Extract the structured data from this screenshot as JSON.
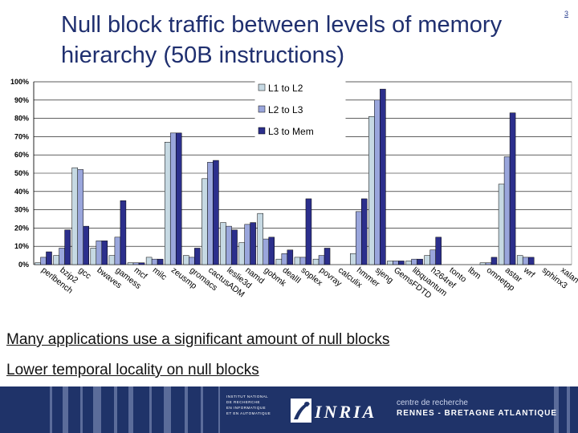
{
  "slide": {
    "title": "Null block traffic between levels of memory hierarchy (50B instructions)",
    "number": "3",
    "bullets": [
      "Many applications use a significant amount of null blocks",
      "Lower temporal locality on null blocks"
    ]
  },
  "footer": {
    "institute_lines": [
      "INSTITUT NATIONAL",
      "DE RECHERCHE",
      "EN INFORMATIQUE",
      "ET EN AUTOMATIQUE"
    ],
    "logo_text": "INRIA",
    "centre_line1": "centre de recherche",
    "centre_line2": "RENNES - BRETAGNE ATLANTIQUE",
    "background_color": "#1f3369"
  },
  "chart_data": {
    "type": "bar",
    "title": "",
    "xlabel": "",
    "ylabel": "",
    "ylim": [
      0,
      100
    ],
    "y_ticks": [
      "0%",
      "10%",
      "20%",
      "30%",
      "40%",
      "50%",
      "60%",
      "70%",
      "80%",
      "90%",
      "100%"
    ],
    "grid": true,
    "legend_position": "top-center",
    "categories": [
      "perlbench",
      "bzip2",
      "gcc",
      "bwaves",
      "gamess",
      "mcf",
      "milc",
      "zeusmp",
      "gromacs",
      "cactusADM",
      "leslie3d",
      "namd",
      "gobmk",
      "dealII",
      "soplex",
      "povray",
      "calculix",
      "hmmer",
      "sjeng",
      "GemsFDTD",
      "libquantum",
      "h264ref",
      "tonto",
      "lbm",
      "omnetpp",
      "astar",
      "wrf",
      "sphinx3",
      "xalan"
    ],
    "series": [
      {
        "name": "L1 to L2",
        "color": "#c6d9e3",
        "values": [
          1,
          5,
          53,
          9,
          5,
          1,
          4,
          67,
          5,
          47,
          23,
          12,
          28,
          3,
          4,
          3,
          0,
          6,
          81,
          2,
          2,
          5,
          0,
          0,
          1,
          44,
          5,
          0,
          0
        ]
      },
      {
        "name": "L2 to L3",
        "color": "#9aa6dc",
        "values": [
          4,
          9,
          52,
          13,
          15,
          1,
          3,
          72,
          4,
          56,
          21,
          22,
          14,
          6,
          4,
          5,
          0,
          29,
          90,
          2,
          3,
          8,
          0,
          0,
          1,
          59,
          4,
          0,
          0
        ]
      },
      {
        "name": "L3 to Mem",
        "color": "#2c2f8c",
        "values": [
          7,
          19,
          21,
          13,
          35,
          1,
          3,
          72,
          9,
          57,
          19,
          23,
          15,
          8,
          36,
          9,
          0,
          36,
          96,
          2,
          3,
          15,
          0,
          0,
          4,
          83,
          4,
          0,
          0
        ]
      }
    ]
  }
}
